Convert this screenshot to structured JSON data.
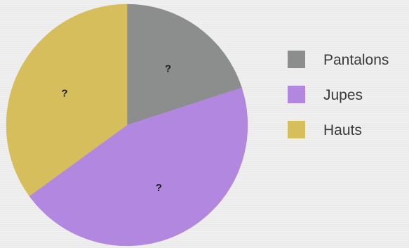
{
  "chart_data": {
    "type": "pie",
    "start_angle_deg": 0,
    "direction": "clockwise",
    "legend_position": "right",
    "slices": [
      {
        "label": "Pantalons",
        "value": 20,
        "color": "#8c8e8d",
        "data_label": "?"
      },
      {
        "label": "Jupes",
        "value": 45,
        "color": "#b187df",
        "data_label": "?"
      },
      {
        "label": "Hauts",
        "value": 35,
        "color": "#d6be5c",
        "data_label": "?"
      }
    ],
    "legend": [
      {
        "label": "Pantalons",
        "color": "#8c8e8d"
      },
      {
        "label": "Jupes",
        "color": "#b187df"
      },
      {
        "label": "Hauts",
        "color": "#d6be5c"
      }
    ]
  }
}
